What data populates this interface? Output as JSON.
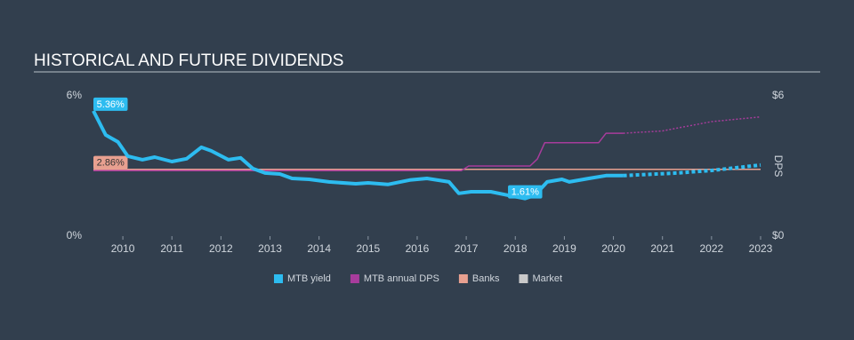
{
  "chart_data": {
    "type": "line",
    "title": "HISTORICAL AND FUTURE DIVIDENDS",
    "y2_label": "DPS",
    "xlim": [
      2009.4,
      2023
    ],
    "xticks": [
      2010,
      2011,
      2012,
      2013,
      2014,
      2015,
      2016,
      2017,
      2018,
      2019,
      2020,
      2021,
      2022,
      2023
    ],
    "ylim": [
      0,
      6
    ],
    "yticks": [
      {
        "value": 0,
        "label": "0%"
      },
      {
        "value": 6,
        "label": "6%"
      }
    ],
    "y2lim": [
      0,
      6
    ],
    "y2ticks": [
      {
        "value": 0,
        "label": "$0"
      },
      {
        "value": 6,
        "label": "$6"
      }
    ],
    "series": [
      {
        "name": "Banks",
        "color": "#e8a090",
        "axis": "y",
        "x": [
          2009.4,
          2023
        ],
        "values": [
          2.86,
          2.86
        ],
        "value_labels": [
          "2.86%",
          null
        ]
      },
      {
        "name": "MTB annual DPS",
        "color": "#a83c9c",
        "axis": "y2",
        "x": [
          2009.4,
          2016.9,
          2017.05,
          2018.3,
          2018.45,
          2018.6,
          2019.7,
          2019.85,
          2020.2
        ],
        "values": [
          2.8,
          2.8,
          3.0,
          3.0,
          3.3,
          4.0,
          4.0,
          4.4,
          4.4
        ]
      },
      {
        "name": "MTB annual DPS",
        "color": "#a83c9c",
        "axis": "y2",
        "dashed": true,
        "x": [
          2020.2,
          2021,
          2022,
          2023
        ],
        "values": [
          4.4,
          4.5,
          4.9,
          5.1
        ]
      },
      {
        "name": "MTB yield",
        "color": "#2dbcf0",
        "axis": "y",
        "x": [
          2009.4,
          2009.65,
          2009.9,
          2010.1,
          2010.4,
          2010.65,
          2011.0,
          2011.3,
          2011.6,
          2011.8,
          2012.15,
          2012.4,
          2012.65,
          2012.9,
          2013.2,
          2013.45,
          2013.8,
          2014.2,
          2014.75,
          2015.0,
          2015.4,
          2015.85,
          2016.2,
          2016.65,
          2016.85,
          2017.1,
          2017.5,
          2017.85,
          2018.2,
          2018.4,
          2018.65,
          2018.95,
          2019.1,
          2019.5,
          2019.85,
          2020.2
        ],
        "values": [
          5.36,
          4.33,
          4.03,
          3.42,
          3.27,
          3.38,
          3.19,
          3.31,
          3.8,
          3.65,
          3.27,
          3.35,
          2.89,
          2.7,
          2.66,
          2.47,
          2.43,
          2.32,
          2.24,
          2.28,
          2.21,
          2.4,
          2.47,
          2.32,
          1.83,
          1.9,
          1.9,
          1.75,
          1.61,
          1.75,
          2.32,
          2.43,
          2.32,
          2.47,
          2.59,
          2.59
        ],
        "value_labels": [
          "5.36%",
          null,
          null,
          null,
          null,
          null,
          null,
          null,
          null,
          null,
          null,
          null,
          null,
          null,
          null,
          null,
          null,
          null,
          null,
          null,
          null,
          null,
          null,
          null,
          null,
          null,
          null,
          null,
          "1.61%",
          null,
          null,
          null,
          null,
          null,
          null,
          null
        ]
      },
      {
        "name": "MTB yield",
        "color": "#2dbcf0",
        "axis": "y",
        "dashed": true,
        "x": [
          2020.2,
          2021.3,
          2022,
          2023
        ],
        "values": [
          2.59,
          2.7,
          2.81,
          3.04
        ]
      },
      {
        "name": "Market",
        "color": "#c9c9c9",
        "axis": "y",
        "x": [],
        "values": []
      }
    ],
    "legend": "bottom"
  }
}
